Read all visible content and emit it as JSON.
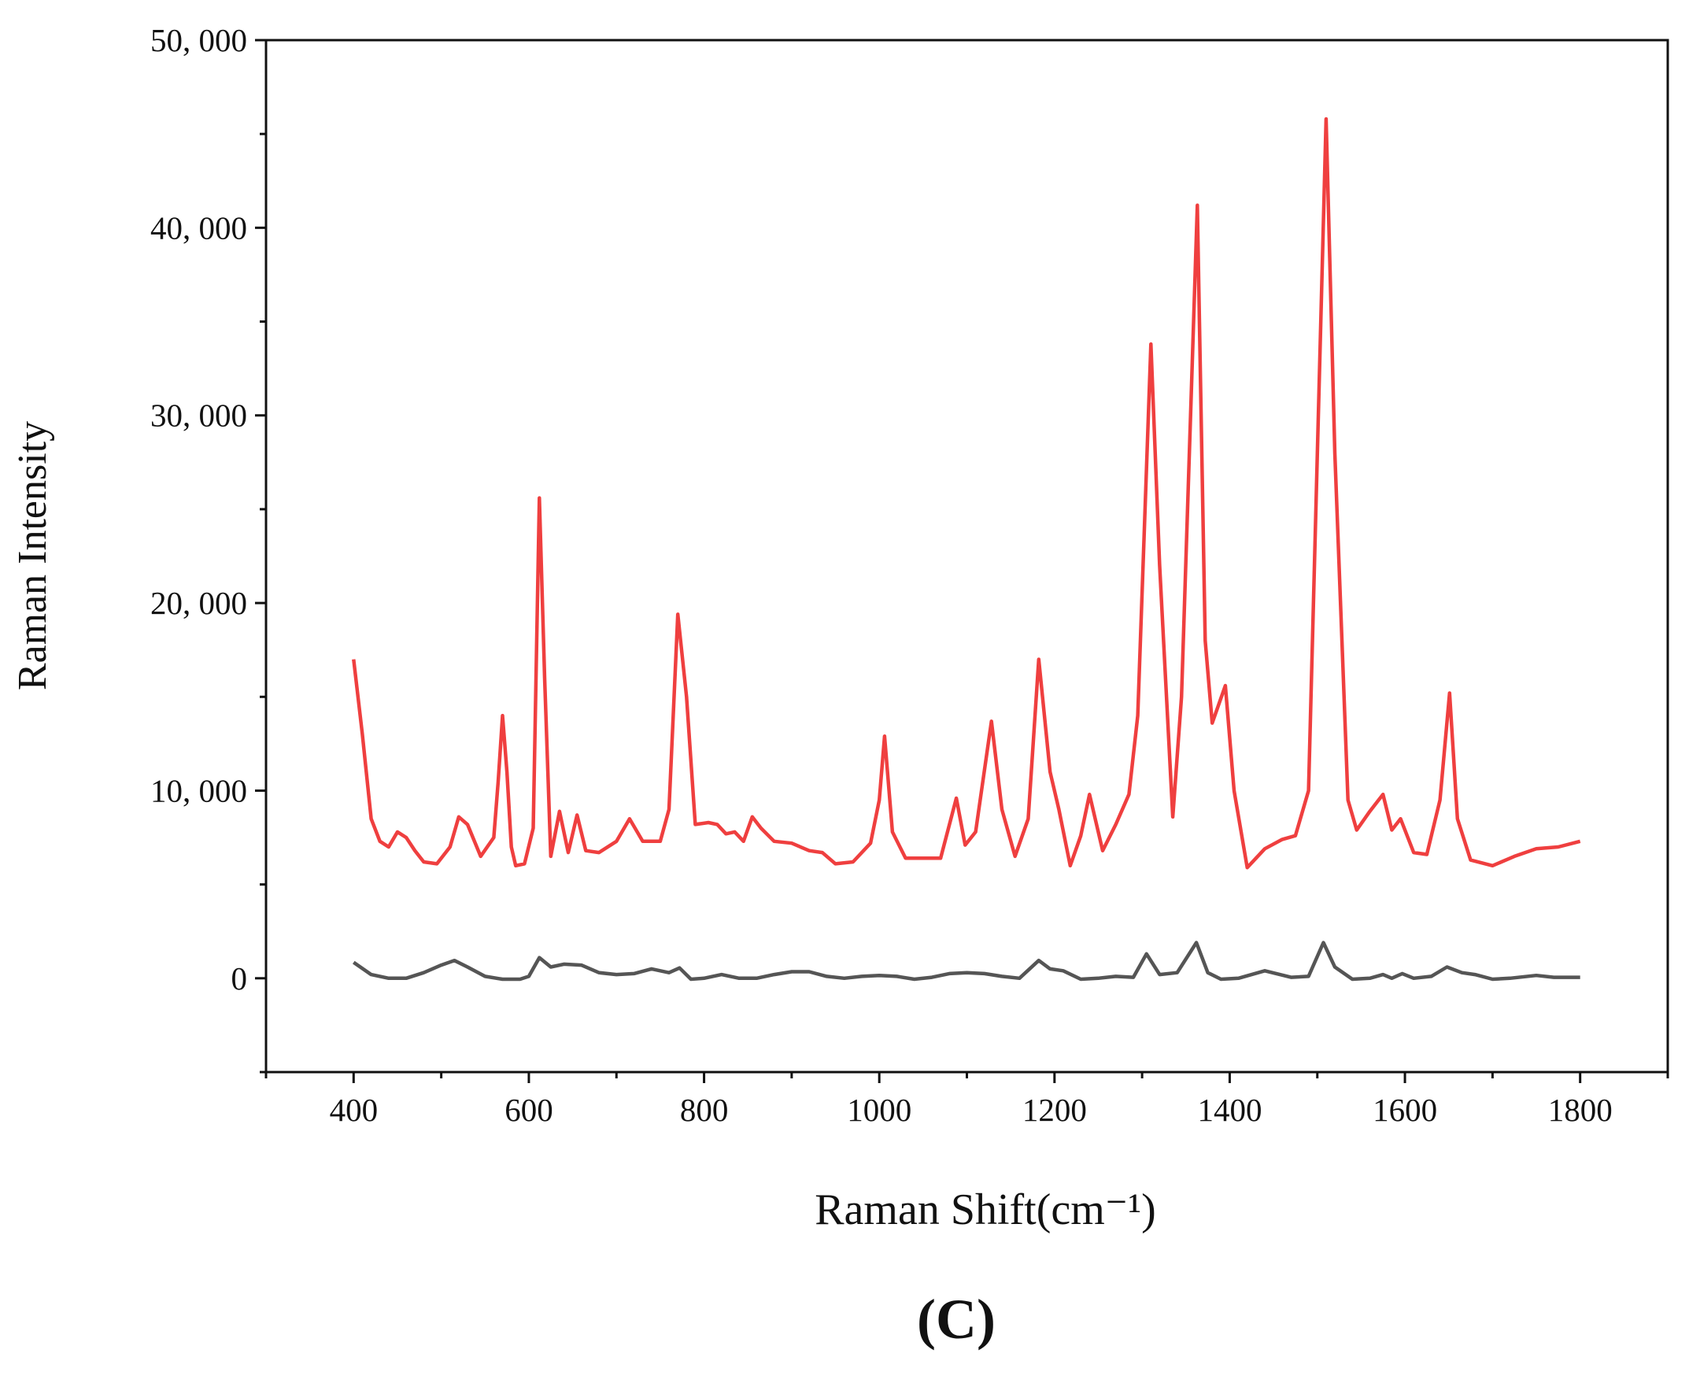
{
  "chart_data": {
    "type": "line",
    "xlabel": "Raman Shift(cm⁻¹)",
    "ylabel": "Raman Intensity",
    "panel_label": "(C)",
    "xlim": [
      300,
      1900
    ],
    "xticks": [
      400,
      600,
      800,
      1000,
      1200,
      1400,
      1600,
      1800
    ],
    "xminorticks": [
      300,
      500,
      700,
      900,
      1100,
      1300,
      1500,
      1700,
      1900
    ],
    "ylim": [
      -5000,
      50000
    ],
    "yticks": [
      0,
      {
        "value": 10000,
        "label": "10, 000"
      },
      {
        "value": 20000,
        "label": "20, 000"
      },
      {
        "value": 30000,
        "label": "30, 000"
      },
      {
        "value": 40000,
        "label": "40, 000"
      },
      {
        "value": 50000,
        "label": "50, 000"
      }
    ],
    "yminorticks": [
      -5000,
      5000,
      15000,
      25000,
      35000,
      45000
    ],
    "series": [
      {
        "color": "#ef3f3f",
        "x": [
          400,
          410,
          420,
          430,
          440,
          450,
          460,
          470,
          480,
          495,
          510,
          520,
          530,
          545,
          560,
          565,
          570,
          575,
          580,
          585,
          595,
          605,
          612,
          618,
          625,
          635,
          645,
          655,
          665,
          680,
          700,
          715,
          730,
          750,
          760,
          770,
          780,
          790,
          805,
          815,
          825,
          835,
          845,
          855,
          865,
          880,
          900,
          920,
          935,
          950,
          970,
          990,
          1000,
          1006,
          1015,
          1030,
          1050,
          1070,
          1088,
          1098,
          1110,
          1128,
          1140,
          1155,
          1170,
          1182,
          1195,
          1205,
          1218,
          1230,
          1240,
          1255,
          1270,
          1285,
          1295,
          1310,
          1320,
          1335,
          1345,
          1363,
          1372,
          1380,
          1395,
          1405,
          1420,
          1440,
          1460,
          1475,
          1490,
          1510,
          1520,
          1535,
          1545,
          1560,
          1575,
          1585,
          1595,
          1610,
          1625,
          1640,
          1651,
          1660,
          1675,
          1700,
          1725,
          1750,
          1775,
          1800
        ],
        "values": [
          17000,
          13000,
          8500,
          7300,
          7000,
          7800,
          7500,
          6800,
          6200,
          6100,
          7000,
          8600,
          8200,
          6500,
          7500,
          10500,
          14000,
          11000,
          7000,
          6000,
          6100,
          8000,
          25600,
          16000,
          6500,
          8900,
          6700,
          8700,
          6800,
          6700,
          7300,
          8500,
          7300,
          7300,
          9000,
          19400,
          15000,
          8200,
          8300,
          8200,
          7700,
          7800,
          7300,
          8600,
          8000,
          7300,
          7200,
          6800,
          6700,
          6100,
          6200,
          7200,
          9500,
          12900,
          7800,
          6400,
          6400,
          6400,
          9600,
          7100,
          7800,
          13700,
          9000,
          6500,
          8500,
          17000,
          11000,
          9000,
          6000,
          7600,
          9800,
          6800,
          8200,
          9800,
          14000,
          33800,
          22000,
          8600,
          15000,
          41200,
          18000,
          13600,
          15600,
          10000,
          5900,
          6900,
          7400,
          7600,
          10000,
          45800,
          28000,
          9500,
          7900,
          8900,
          9800,
          7900,
          8500,
          6700,
          6600,
          9500,
          15200,
          8500,
          6300,
          6000,
          6500,
          6900,
          7000,
          7300
        ]
      },
      {
        "color": "#555555",
        "x": [
          400,
          420,
          440,
          460,
          480,
          500,
          515,
          530,
          550,
          570,
          590,
          600,
          612,
          625,
          640,
          660,
          680,
          700,
          720,
          740,
          760,
          772,
          785,
          800,
          820,
          840,
          860,
          880,
          900,
          920,
          940,
          960,
          980,
          1000,
          1020,
          1040,
          1060,
          1080,
          1100,
          1120,
          1140,
          1160,
          1182,
          1195,
          1210,
          1230,
          1250,
          1270,
          1290,
          1305,
          1320,
          1340,
          1362,
          1375,
          1390,
          1410,
          1440,
          1470,
          1490,
          1507,
          1520,
          1540,
          1560,
          1575,
          1585,
          1597,
          1610,
          1630,
          1648,
          1665,
          1680,
          1700,
          1720,
          1750,
          1770,
          1800
        ],
        "values": [
          850,
          200,
          0,
          0,
          300,
          700,
          950,
          600,
          100,
          -50,
          -50,
          100,
          1100,
          600,
          750,
          700,
          300,
          200,
          250,
          500,
          300,
          550,
          -50,
          0,
          200,
          0,
          0,
          200,
          350,
          350,
          100,
          0,
          100,
          150,
          100,
          -50,
          50,
          250,
          300,
          250,
          100,
          0,
          950,
          500,
          400,
          -50,
          0,
          100,
          50,
          1300,
          200,
          300,
          1900,
          300,
          -50,
          0,
          400,
          50,
          100,
          1900,
          600,
          -50,
          0,
          200,
          0,
          250,
          0,
          100,
          600,
          300,
          200,
          -50,
          0,
          150,
          50,
          50
        ]
      }
    ]
  }
}
